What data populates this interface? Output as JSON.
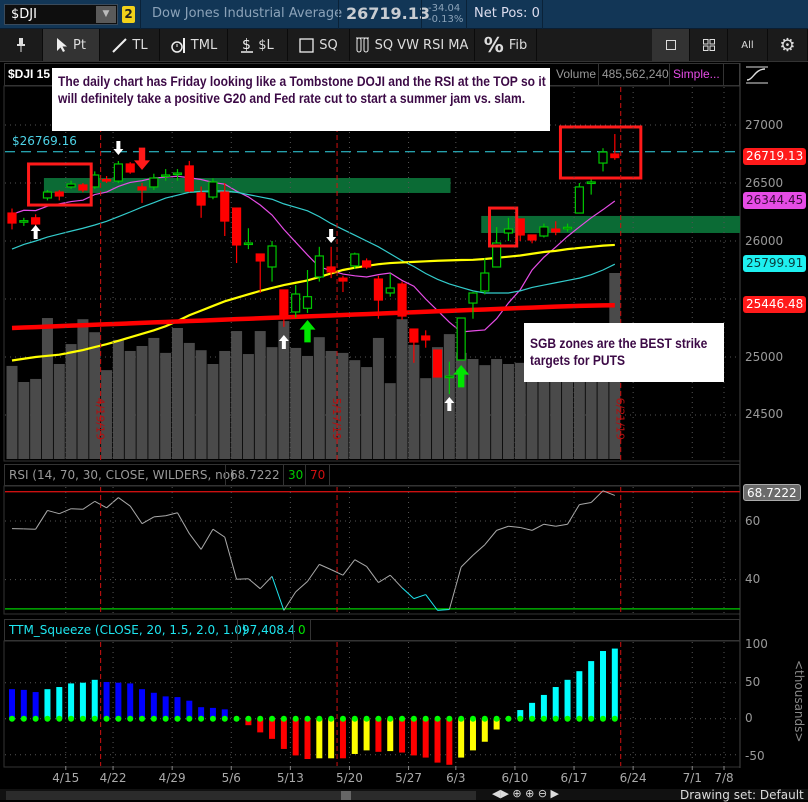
{
  "header": {
    "symbol": "$DJI",
    "link_group": "2",
    "description": "Dow Jones Industrial Average",
    "last_price": "26719.13",
    "net_change": "-34.04",
    "percent_change": "-0.13%",
    "net_position": "Net Pos: 0"
  },
  "toolbar": {
    "items": [
      {
        "label": "",
        "icon": "pin-icon"
      },
      {
        "label": "Pt",
        "icon": "cursor-arrow-icon",
        "active": true
      },
      {
        "label": "TL",
        "icon": "trendline-icon"
      },
      {
        "label": "TML",
        "icon": "timer-icon"
      },
      {
        "label": "$L",
        "icon": "price-level-icon"
      },
      {
        "label": "SQ",
        "icon": "square-icon"
      },
      {
        "label": "SQ VW RSI MA",
        "icon": "test-tubes-icon"
      },
      {
        "label": "Fib",
        "icon": "percent-icon"
      }
    ],
    "right_items": [
      {
        "label": "",
        "icon": "single-layout-icon",
        "active": true
      },
      {
        "label": "",
        "icon": "grid-layout-icon"
      },
      {
        "label": "All",
        "icon": ""
      },
      {
        "label": "",
        "icon": "gear-icon"
      }
    ]
  },
  "price_panel": {
    "title": "$DJI 15",
    "volume_label": "Volume",
    "volume_value": "485,562,240",
    "ma_label": "Simple...",
    "price_line_label": "$26769.16",
    "axis_labels": [
      "27000",
      "26500",
      "26000",
      "25000",
      "24500"
    ],
    "badges": [
      {
        "value": "26719.13",
        "bg": "#ff1a1a",
        "fg": "#ffffff"
      },
      {
        "value": "26344.45",
        "bg": "#e64ce6",
        "fg": "#3a0a3a"
      },
      {
        "value": "25799.91",
        "bg": "#1ef0f0",
        "fg": "#0a3a3a"
      },
      {
        "value": "25446.48",
        "bg": "#ff1a1a",
        "fg": "#ffffff"
      }
    ],
    "notes": [
      "The daily chart has Friday looking like a Tombstone DOJI and the RSI at the TOP so it will definitely take a positive G20 and Fed rate cut to start a summer jam vs. slam.",
      "SGB zones are the BEST strike targets for PUTS"
    ]
  },
  "rsi_panel": {
    "title": "RSI (14, 70, 30, CLOSE, WILDERS, no)",
    "value": "68.7222",
    "oversold": "30",
    "overbought": "70",
    "axis_labels": [
      "60",
      "40"
    ]
  },
  "ttm_panel": {
    "title": "TTM_Squeeze (CLOSE, 20, 1.5, 2.0, 1.0)",
    "value": "97,408.4",
    "squeeze": "0",
    "axis_labels": [
      "100",
      "50",
      "0",
      "-50"
    ],
    "unit": "<thousands>"
  },
  "date_axis": [
    "4/15",
    "4/22",
    "4/29",
    "5/6",
    "5/13",
    "5/20",
    "5/27",
    "6/3",
    "6/10",
    "6/17",
    "6/24",
    "7/1",
    "7/8"
  ],
  "footer": {
    "drawing_set": "Drawing set: Default"
  },
  "colors": {
    "up": "#00c800",
    "down": "#ff0000",
    "zone": "#0b6b35",
    "ma_fast": "#e64ce6",
    "ma_mid": "#33cccc",
    "ma_slow": "#ffff00",
    "ma_long": "#ff0000",
    "volume": "#4a4a4a"
  },
  "chart_data": {
    "type": "candlestick",
    "dates": [
      "4/9",
      "4/10",
      "4/11",
      "4/12",
      "4/15",
      "4/16",
      "4/17",
      "4/18",
      "4/22",
      "4/23",
      "4/24",
      "4/25",
      "4/26",
      "4/29",
      "4/30",
      "5/1",
      "5/2",
      "5/3",
      "5/6",
      "5/7",
      "5/8",
      "5/9",
      "5/10",
      "5/13",
      "5/14",
      "5/15",
      "5/16",
      "5/17",
      "5/20",
      "5/21",
      "5/22",
      "5/23",
      "5/24",
      "5/28",
      "5/29",
      "5/30",
      "5/31",
      "6/3",
      "6/4",
      "6/5",
      "6/6",
      "6/7",
      "6/10",
      "6/11",
      "6/12",
      "6/13",
      "6/14",
      "6/17",
      "6/18",
      "6/19",
      "6/20",
      "6/21"
    ],
    "ohlc": [
      [
        26241,
        26280,
        26100,
        26155
      ],
      [
        26165,
        26200,
        26130,
        26175
      ],
      [
        26200,
        26230,
        26069,
        26147
      ],
      [
        26371,
        26440,
        26350,
        26422
      ],
      [
        26422,
        26440,
        26350,
        26388
      ],
      [
        26466,
        26520,
        26450,
        26491
      ],
      [
        26483,
        26500,
        26420,
        26440
      ],
      [
        26466,
        26600,
        26450,
        26569
      ],
      [
        26530,
        26560,
        26500,
        26522
      ],
      [
        26517,
        26690,
        26500,
        26664
      ],
      [
        26664,
        26680,
        26580,
        26595
      ],
      [
        26466,
        26500,
        26328,
        26440
      ],
      [
        26466,
        26580,
        26440,
        26543
      ],
      [
        26560,
        26620,
        26520,
        26569
      ],
      [
        26580,
        26620,
        26520,
        26586
      ],
      [
        26647,
        26690,
        26420,
        26431
      ],
      [
        26414,
        26470,
        26200,
        26310
      ],
      [
        26379,
        26540,
        26360,
        26509
      ],
      [
        26422,
        26500,
        26043,
        26172
      ],
      [
        26284,
        26284,
        25810,
        25966
      ],
      [
        25974,
        26110,
        25930,
        25983
      ],
      [
        25888,
        25888,
        25552,
        25828
      ],
      [
        25776,
        26000,
        25650,
        25957
      ],
      [
        25578,
        25578,
        25260,
        25336
      ],
      [
        25388,
        25620,
        25340,
        25543
      ],
      [
        25420,
        25750,
        25380,
        25520
      ],
      [
        25690,
        25950,
        25650,
        25871
      ],
      [
        25776,
        25950,
        25680,
        25733
      ],
      [
        25680,
        25700,
        25560,
        25655
      ],
      [
        25785,
        25900,
        25760,
        25888
      ],
      [
        25828,
        25850,
        25760,
        25776
      ],
      [
        25672,
        25700,
        25330,
        25491
      ],
      [
        25552,
        25720,
        25520,
        25595
      ],
      [
        25629,
        25650,
        25320,
        25353
      ],
      [
        25241,
        25241,
        24950,
        25129
      ],
      [
        25181,
        25230,
        25080,
        25147
      ],
      [
        25060,
        25060,
        24828,
        24828
      ],
      [
        24830,
        24960,
        24680,
        24835
      ],
      [
        24974,
        25340,
        24974,
        25336
      ],
      [
        25465,
        25560,
        25330,
        25552
      ],
      [
        25569,
        25850,
        25540,
        25724
      ],
      [
        25776,
        26120,
        25776,
        25983
      ],
      [
        26069,
        26200,
        26000,
        26103
      ],
      [
        26190,
        26190,
        26000,
        26052
      ],
      [
        26052,
        26052,
        25980,
        26009
      ],
      [
        26043,
        26150,
        26030,
        26121
      ],
      [
        26103,
        26170,
        26050,
        26078
      ],
      [
        26112,
        26150,
        26080,
        26118
      ],
      [
        26241,
        26500,
        26241,
        26466
      ],
      [
        26500,
        26550,
        26400,
        26509
      ],
      [
        26672,
        26800,
        26600,
        26767
      ],
      [
        26750,
        26922,
        26700,
        26719.13
      ]
    ],
    "volume": [
      243000000,
      201000000,
      209000000,
      368000000,
      248000000,
      300000000,
      365000000,
      331000000,
      232000000,
      311000000,
      282000000,
      295000000,
      316000000,
      277000000,
      342000000,
      303000000,
      284000000,
      248000000,
      282000000,
      334000000,
      274000000,
      334000000,
      292000000,
      360000000,
      290000000,
      269000000,
      318000000,
      282000000,
      277000000,
      258000000,
      240000000,
      316000000,
      198000000,
      365000000,
      298000000,
      211000000,
      292000000,
      326000000,
      277000000,
      261000000,
      245000000,
      261000000,
      248000000,
      251000000,
      261000000,
      256000000,
      266000000,
      287000000,
      274000000,
      282000000,
      261000000,
      485562240
    ],
    "moving_averages": [
      {
        "color": "#e64ce6",
        "values": [
          26230,
          26265,
          26262,
          26300,
          26320,
          26340,
          26352,
          26400,
          26422,
          26470,
          26505,
          26520,
          26543,
          26550,
          26558,
          26545,
          26530,
          26505,
          26490,
          26430,
          26380,
          26310,
          26224,
          26100,
          25990,
          25880,
          25776,
          25745,
          25715,
          25700,
          25690,
          25710,
          25724,
          25660,
          25610,
          25500,
          25400,
          25300,
          25216,
          25225,
          25233,
          25330,
          25466,
          25580,
          25750,
          25860,
          25948,
          26040,
          26121,
          26200,
          26270,
          26344.45
        ]
      },
      {
        "color": "#33cccc",
        "values": [
          25930,
          25970,
          26000,
          26034,
          26060,
          26085,
          26110,
          26138,
          26170,
          26210,
          26250,
          26293,
          26330,
          26370,
          26395,
          26420,
          26428,
          26431,
          26431,
          26420,
          26400,
          26380,
          26360,
          26320,
          26290,
          26260,
          26210,
          26150,
          26100,
          26050,
          26000,
          25950,
          25890,
          25830,
          25780,
          25720,
          25670,
          25630,
          25600,
          25570,
          25552,
          25552,
          25552,
          25570,
          25600,
          25620,
          25640,
          25660,
          25680,
          25710,
          25750,
          25799.91
        ]
      },
      {
        "color": "#ffff00",
        "values": [
          24970,
          24985,
          25000,
          25010,
          25020,
          25040,
          25060,
          25086,
          25110,
          25140,
          25170,
          25200,
          25230,
          25265,
          25310,
          25360,
          25400,
          25440,
          25480,
          25510,
          25540,
          25570,
          25595,
          25620,
          25640,
          25660,
          25690,
          25720,
          25750,
          25770,
          25785,
          25800,
          25810,
          25815,
          25820,
          25825,
          25830,
          25833,
          25836,
          25838,
          25845,
          25855,
          25865,
          25875,
          25890,
          25905,
          25915,
          25930,
          25940,
          25950,
          25960,
          25966
        ]
      },
      {
        "color": "#ff0000",
        "values": [
          25250,
          25254,
          25258,
          25262,
          25266,
          25270,
          25274,
          25278,
          25282,
          25286,
          25290,
          25294,
          25298,
          25302,
          25306,
          25310,
          25314,
          25318,
          25322,
          25326,
          25330,
          25334,
          25338,
          25342,
          25346,
          25350,
          25354,
          25358,
          25362,
          25366,
          25370,
          25374,
          25378,
          25382,
          25386,
          25390,
          25394,
          25398,
          25402,
          25406,
          25410,
          25414,
          25418,
          25422,
          25426,
          25430,
          25434,
          25438,
          25441,
          25443,
          25445,
          25446.48
        ]
      }
    ],
    "price_line": 26769.16,
    "zones": [
      {
        "from": "4/12",
        "to": "6/3",
        "low": 26414,
        "high": 26543
      },
      {
        "from": "6/6",
        "to": "",
        "low": 26069,
        "high": 26216
      }
    ],
    "highlight_boxes": [
      {
        "from": "4/11",
        "to": "4/17",
        "low": 26310,
        "high": 26664
      },
      {
        "from": "6/7",
        "to": "6/10",
        "low": 25957,
        "high": 26284
      },
      {
        "from": "6/17",
        "to": "6/21",
        "low": 26543,
        "high": 26983
      }
    ],
    "arrows": [
      {
        "date": "4/11",
        "direction": "up",
        "color": "#ffffff",
        "price": 26138
      },
      {
        "date": "4/23",
        "direction": "down",
        "color": "#ffffff",
        "price": 26741
      },
      {
        "date": "4/25",
        "direction": "down",
        "color": "#ff1a1a",
        "price": 26612
      },
      {
        "date": "5/13",
        "direction": "up",
        "color": "#ffffff",
        "price": 25190
      },
      {
        "date": "5/15",
        "direction": "up",
        "color": "#00e600",
        "price": 25319
      },
      {
        "date": "5/17",
        "direction": "down",
        "color": "#ffffff",
        "price": 25983
      },
      {
        "date": "6/3",
        "direction": "up",
        "color": "#ffffff",
        "price": 24655
      },
      {
        "date": "6/4",
        "direction": "up",
        "color": "#00e600",
        "price": 24931
      }
    ],
    "event_lines": [
      "4/19/19",
      "5/17/19",
      "6/21/19"
    ],
    "price_ylim": [
      24250,
      27350
    ],
    "rsi": [
      57.4,
      57.3,
      57.2,
      63.6,
      62.5,
      64.2,
      64,
      66.7,
      64.5,
      68,
      65.1,
      59.1,
      61.4,
      61.8,
      62.8,
      55.7,
      50.3,
      57.2,
      54.5,
      40.1,
      40.3,
      36.9,
      41.1,
      29.5,
      35.8,
      39.4,
      45.2,
      43.4,
      41.5,
      46.8,
      44.5,
      39,
      41.5,
      37.2,
      33.5,
      34.9,
      29.5,
      29.8,
      44.3,
      48.3,
      51.9,
      56.8,
      58.2,
      57.8,
      56.8,
      58.9,
      58.2,
      58.9,
      65.6,
      66.3,
      70.3,
      68.7222
    ],
    "rsi_levels": [
      30,
      70
    ],
    "ttm_histogram": [
      41,
      40,
      37,
      41,
      44,
      49,
      50,
      54,
      51,
      50,
      49,
      41,
      36,
      31,
      30,
      25,
      16,
      15,
      13,
      0,
      -9,
      -19,
      -28,
      -42,
      -51,
      -56,
      -55,
      -55,
      -55,
      -49,
      -44,
      -46,
      -45,
      -47,
      -51,
      -54,
      -61,
      -64,
      -54,
      -44,
      -32,
      -15,
      0,
      12,
      22,
      33,
      44,
      54,
      66,
      80,
      94,
      97.4084
    ],
    "ttm_colors": [
      "b",
      "b",
      "b",
      "c",
      "c",
      "c",
      "c",
      "c",
      "b",
      "b",
      "b",
      "b",
      "b",
      "b",
      "b",
      "b",
      "b",
      "b",
      "b",
      "r",
      "r",
      "r",
      "r",
      "r",
      "r",
      "r",
      "y",
      "y",
      "r",
      "y",
      "y",
      "r",
      "y",
      "r",
      "r",
      "r",
      "r",
      "r",
      "y",
      "y",
      "y",
      "y",
      "c",
      "c",
      "c",
      "c",
      "c",
      "c",
      "c",
      "c",
      "c",
      "c"
    ],
    "ttm_palette": {
      "b": "#0000ff",
      "c": "#00ffff",
      "r": "#ff0000",
      "y": "#ffff00",
      "dot": "#00ff00"
    },
    "ttm_ylim": [
      -60,
      100
    ]
  }
}
